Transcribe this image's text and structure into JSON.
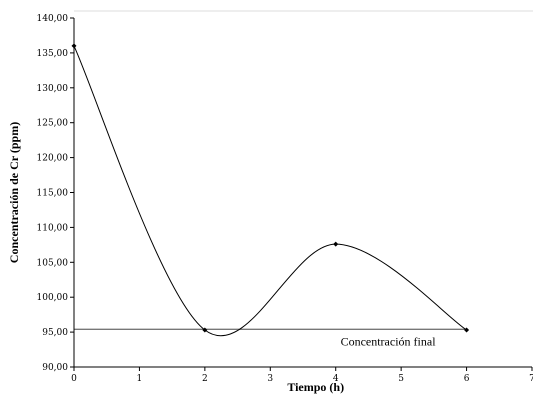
{
  "chart_data": {
    "type": "line",
    "xlabel": "Tiempo (h)",
    "ylabel": "Concentración de Cr (ppm)",
    "xlim": [
      0,
      7
    ],
    "ylim": [
      90,
      140
    ],
    "x_ticks": [
      "0",
      "1",
      "2",
      "3",
      "4",
      "5",
      "6",
      "7"
    ],
    "y_ticks": [
      "90,00",
      "95,00",
      "100,00",
      "105,00",
      "110,00",
      "115,00",
      "120,00",
      "125,00",
      "130,00",
      "135,00",
      "140,00"
    ],
    "series": [
      {
        "x": [
          0,
          2,
          4,
          6
        ],
        "y": [
          136.0,
          95.3,
          107.6,
          95.3
        ],
        "color": "#000000",
        "smooth": true,
        "markers": "diamond"
      }
    ],
    "reference_line": {
      "y": 95.4,
      "x_range": [
        0,
        6
      ],
      "label": "Concentración final",
      "color": "#777777"
    },
    "grid": false,
    "legend": "none"
  }
}
